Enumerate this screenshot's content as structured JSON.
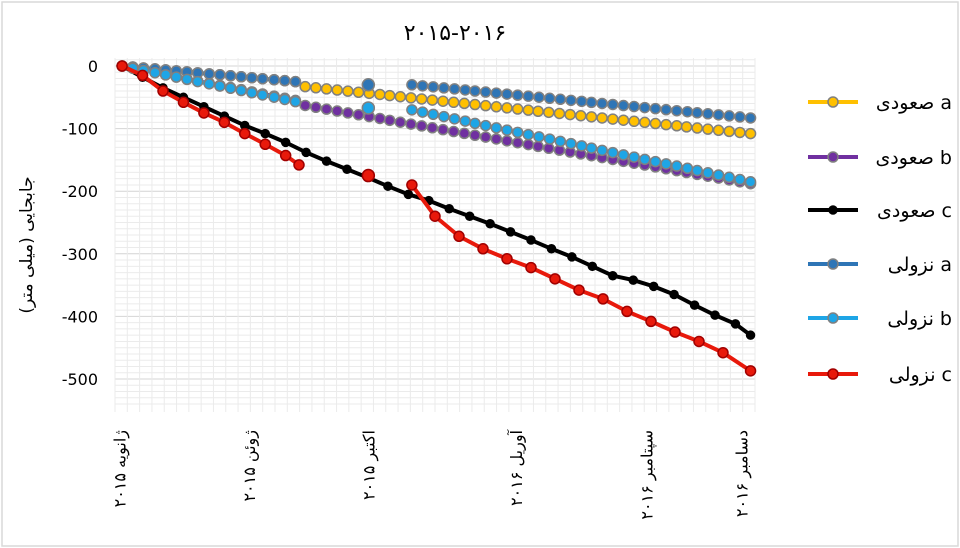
{
  "chart_data": {
    "type": "line",
    "title": "۲۰۱۵-۲۰۱۶",
    "ylabel": "جابجایی (میلی متر)",
    "xlabel": "",
    "ylim": [
      -550,
      0
    ],
    "yticks": [
      0,
      -100,
      -200,
      -300,
      -400,
      -500
    ],
    "ytick_labels": [
      "0",
      "-100",
      "-200",
      "-300",
      "-400",
      "-500"
    ],
    "xlim": [
      "2015-01-10",
      "2016-12-30"
    ],
    "x_ticks": [
      {
        "date": "2015-01-15",
        "label": "ژانویه ۲۰۱۵"
      },
      {
        "date": "2015-06-10",
        "label": "ژوئن ۲۰۱۵"
      },
      {
        "date": "2015-10-22",
        "label": "اکتبر ۲۰۱۵"
      },
      {
        "date": "2016-04-05",
        "label": "آوریل ۲۰۱۶"
      },
      {
        "date": "2016-08-30",
        "label": "سپتامبر ۲۰۱۶"
      },
      {
        "date": "2016-12-15",
        "label": "دسامبر ۲۰۱۶"
      }
    ],
    "grid": true,
    "legend_position": "right",
    "series": [
      {
        "name": "صعودی a",
        "color": "#ffc000",
        "marker_edge": "#808080",
        "segments": [
          {
            "from": "2015-01-18",
            "to": "2015-08-01",
            "start": 0,
            "end": -25
          },
          {
            "from": "2015-08-12",
            "to": "2016-12-25",
            "start": -33,
            "end": -108
          }
        ],
        "step_days": 12
      },
      {
        "name": "صعودی b",
        "color": "#7030a0",
        "marker_edge": "#808080",
        "segments": [
          {
            "from": "2015-01-18",
            "to": "2015-08-01",
            "start": 0,
            "end": -55
          },
          {
            "from": "2015-08-12",
            "to": "2016-12-25",
            "start": -63,
            "end": -188
          }
        ],
        "step_days": 12
      },
      {
        "name": "صعودی c",
        "color": "#000000",
        "marker_edge": "#000000",
        "points": [
          [
            "2015-01-18",
            0
          ],
          [
            "2015-02-10",
            -18
          ],
          [
            "2015-03-05",
            -35
          ],
          [
            "2015-03-28",
            -50
          ],
          [
            "2015-04-20",
            -65
          ],
          [
            "2015-05-13",
            -80
          ],
          [
            "2015-06-05",
            -95
          ],
          [
            "2015-06-28",
            -108
          ],
          [
            "2015-07-21",
            -122
          ],
          [
            "2015-08-13",
            -138
          ],
          [
            "2015-09-05",
            -152
          ],
          [
            "2015-09-28",
            -165
          ],
          [
            "2015-10-21",
            -178
          ],
          [
            "2015-11-13",
            -192
          ],
          [
            "2015-12-06",
            -205
          ],
          [
            "2015-12-29",
            -215
          ],
          [
            "2016-01-21",
            -228
          ],
          [
            "2016-02-13",
            -240
          ],
          [
            "2016-03-07",
            -252
          ],
          [
            "2016-03-30",
            -265
          ],
          [
            "2016-04-22",
            -278
          ],
          [
            "2016-05-15",
            -292
          ],
          [
            "2016-06-07",
            -305
          ],
          [
            "2016-06-30",
            -320
          ],
          [
            "2016-07-23",
            -335
          ],
          [
            "2016-08-15",
            -342
          ],
          [
            "2016-09-07",
            -352
          ],
          [
            "2016-09-30",
            -365
          ],
          [
            "2016-10-23",
            -382
          ],
          [
            "2016-11-15",
            -398
          ],
          [
            "2016-12-08",
            -412
          ],
          [
            "2016-12-25",
            -430
          ]
        ]
      },
      {
        "name": "نزولی a",
        "color": "#2e75b6",
        "marker_edge": "#808080",
        "segments": [
          {
            "from": "2015-01-18",
            "to": "2015-08-01",
            "start": 0,
            "end": -25
          },
          {
            "from": "2015-12-10",
            "to": "2016-12-25",
            "start": -30,
            "end": -83
          }
        ],
        "extra_points": [
          [
            "2015-10-22",
            -30
          ]
        ],
        "step_days": 12
      },
      {
        "name": "نزولی b",
        "color": "#1ea5e6",
        "marker_edge": "#808080",
        "segments": [
          {
            "from": "2015-01-18",
            "to": "2015-08-01",
            "start": 0,
            "end": -57
          },
          {
            "from": "2015-12-10",
            "to": "2016-12-25",
            "start": -70,
            "end": -185
          }
        ],
        "extra_points": [
          [
            "2015-10-22",
            -67
          ]
        ],
        "step_days": 12
      },
      {
        "name": "نزولی c",
        "color": "#e8190b",
        "marker_edge": "#a00000",
        "points": [
          [
            "2015-01-18",
            0
          ],
          [
            "2015-02-10",
            -15
          ],
          [
            "2015-03-05",
            -40
          ],
          [
            "2015-03-28",
            -58
          ],
          [
            "2015-04-20",
            -75
          ],
          [
            "2015-05-13",
            -90
          ],
          [
            "2015-06-05",
            -108
          ],
          [
            "2015-06-28",
            -125
          ],
          [
            "2015-07-21",
            -143
          ],
          [
            "2015-08-05",
            -158
          ]
        ],
        "points2": [
          [
            "2015-12-10",
            -190
          ],
          [
            "2016-01-05",
            -240
          ],
          [
            "2016-02-01",
            -272
          ],
          [
            "2016-02-28",
            -292
          ],
          [
            "2016-03-26",
            -308
          ],
          [
            "2016-04-22",
            -322
          ],
          [
            "2016-05-19",
            -340
          ],
          [
            "2016-06-15",
            -358
          ],
          [
            "2016-07-12",
            -372
          ],
          [
            "2016-08-08",
            -392
          ],
          [
            "2016-09-04",
            -408
          ],
          [
            "2016-10-01",
            -425
          ],
          [
            "2016-10-28",
            -440
          ],
          [
            "2016-11-24",
            -458
          ],
          [
            "2016-12-25",
            -487
          ]
        ],
        "extra_points": [
          [
            "2015-10-22",
            -175
          ]
        ]
      }
    ]
  }
}
